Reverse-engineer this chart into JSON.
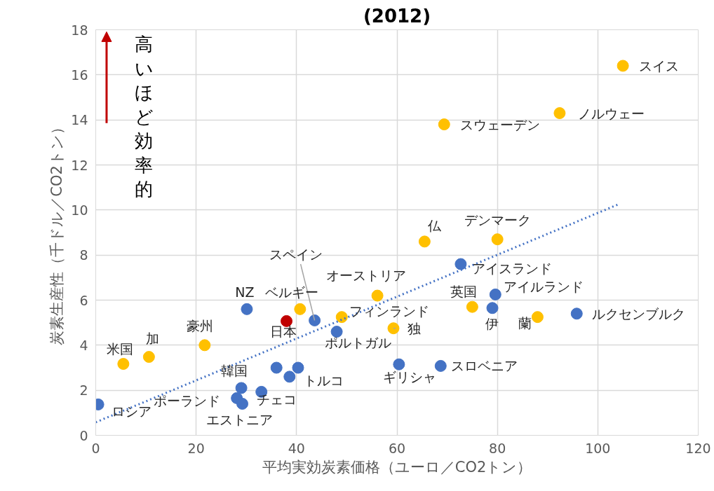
{
  "chart_data": {
    "type": "scatter",
    "title": "(2012)",
    "xlabel": "平均実効炭素価格（ユーロ／CO2トン）",
    "ylabel": "炭素生産性（千ドル／CO2トン）",
    "xlim": [
      0,
      120
    ],
    "xticks": [
      0,
      20,
      40,
      60,
      80,
      100,
      120
    ],
    "ylim": [
      0,
      18
    ],
    "yticks": [
      0,
      2,
      4,
      6,
      8,
      10,
      12,
      14,
      16,
      18
    ],
    "grid": true,
    "marker": "circle",
    "series": [
      {
        "color": "#ffc000",
        "x": [
          105.0,
          92.4,
          69.4,
          65.5,
          80.0,
          56.1,
          40.7,
          49.0,
          59.3,
          75.0,
          88.0,
          21.7,
          10.6,
          5.5
        ],
        "values": [
          16.4,
          14.3,
          13.8,
          8.6,
          8.7,
          6.2,
          5.6,
          5.25,
          4.75,
          5.7,
          5.25,
          4.0,
          3.48,
          3.17
        ]
      },
      {
        "color": "#4472c4",
        "x": [
          72.7,
          79.6,
          79.0,
          95.8,
          30.1,
          43.6,
          48.0,
          60.4,
          68.7,
          29.0,
          36.0,
          40.3,
          38.6,
          33.0,
          28.1,
          29.2,
          0.5
        ],
        "values": [
          7.6,
          6.25,
          5.65,
          5.4,
          5.6,
          5.1,
          4.6,
          3.15,
          3.08,
          2.1,
          3.0,
          3.0,
          2.6,
          1.93,
          1.65,
          1.4,
          1.37
        ]
      },
      {
        "color": "#c00000",
        "x": [
          38.0
        ],
        "values": [
          5.07
        ]
      },
      {
        "type": "line",
        "color": "#4472c4",
        "line_style": "dotted",
        "marker": "none",
        "x": [
          0,
          104.2
        ],
        "values": [
          0.58,
          10.26
        ]
      }
    ],
    "annotations": [
      {
        "text": "スイス",
        "x": 105.0,
        "y": 16.4
      },
      {
        "text": "ノルウェー",
        "x": 92.4,
        "y": 14.3
      },
      {
        "text": "スウェーデン",
        "x": 69.4,
        "y": 13.8
      },
      {
        "text": "仏",
        "x": 65.5,
        "y": 8.6
      },
      {
        "text": "デンマーク",
        "x": 80.0,
        "y": 8.7
      },
      {
        "text": "オーストリア",
        "x": 56.1,
        "y": 6.2
      },
      {
        "text": "ベルギー",
        "x": 40.7,
        "y": 5.6
      },
      {
        "text": "フィンランド",
        "x": 49.0,
        "y": 5.25
      },
      {
        "text": "独",
        "x": 59.3,
        "y": 4.75
      },
      {
        "text": "英国",
        "x": 75.0,
        "y": 5.7
      },
      {
        "text": "蘭",
        "x": 88.0,
        "y": 5.25
      },
      {
        "text": "豪州",
        "x": 21.7,
        "y": 4.0
      },
      {
        "text": "加",
        "x": 10.6,
        "y": 3.48
      },
      {
        "text": "米国",
        "x": 5.5,
        "y": 3.17
      },
      {
        "text": "アイスランド",
        "x": 72.7,
        "y": 7.6
      },
      {
        "text": "アイルランド",
        "x": 79.6,
        "y": 6.25
      },
      {
        "text": "伊",
        "x": 79.0,
        "y": 5.65
      },
      {
        "text": "ルクセンブルク",
        "x": 95.8,
        "y": 5.4
      },
      {
        "text": "NZ",
        "x": 30.1,
        "y": 5.6
      },
      {
        "text": "スペイン",
        "x": 43.6,
        "y": 5.1
      },
      {
        "text": "ポルトガル",
        "x": 48.0,
        "y": 4.6
      },
      {
        "text": "ギリシャ",
        "x": 60.4,
        "y": 3.15
      },
      {
        "text": "スロベニア",
        "x": 68.7,
        "y": 3.08
      },
      {
        "text": "韓国",
        "x": 29.0,
        "y": 2.1
      },
      {
        "text": "トルコ",
        "x": 38.6,
        "y": 2.6
      },
      {
        "text": "チェコ",
        "x": 33.0,
        "y": 1.93
      },
      {
        "text": "ポーランド",
        "x": 28.1,
        "y": 1.65
      },
      {
        "text": "エストニア",
        "x": 29.2,
        "y": 1.4
      },
      {
        "text": "ロシア",
        "x": 0.5,
        "y": 1.37
      },
      {
        "text": "日本",
        "x": 38.0,
        "y": 5.07
      },
      "高いほど効率的"
    ]
  }
}
